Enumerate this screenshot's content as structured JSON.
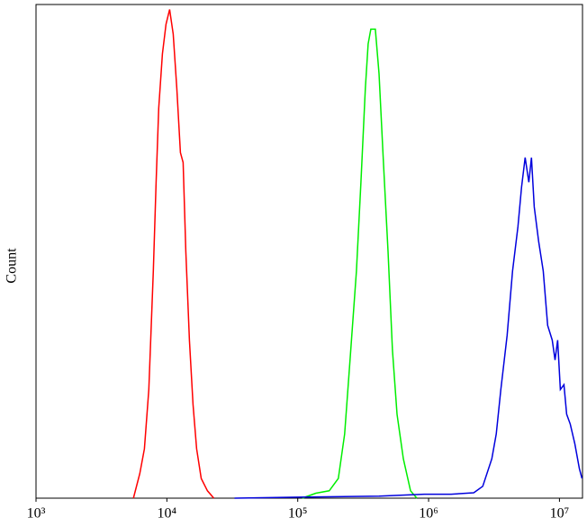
{
  "chart_data": {
    "type": "line",
    "y_label": "Count",
    "xscale": "log",
    "xlim": [
      1000,
      15000000
    ],
    "ylim": [
      0,
      100
    ],
    "xticks": [
      {
        "value": 1000,
        "label": "10³"
      },
      {
        "value": 10000,
        "label": "10⁴"
      },
      {
        "value": 100000,
        "label": "10⁵"
      },
      {
        "value": 1000000,
        "label": "10⁶"
      },
      {
        "value": 10000000,
        "label": "10⁷"
      }
    ],
    "series": [
      {
        "color": "#ff0000",
        "x": [
          5555,
          6210,
          6730,
          7280,
          7880,
          8270,
          8670,
          9240,
          9850,
          10490,
          11180,
          11910,
          12690,
          13300,
          13960,
          14870,
          15850,
          16890,
          18290,
          20420,
          22840
        ],
        "values": [
          0,
          5,
          10,
          22,
          46,
          64,
          79,
          90,
          96,
          99,
          94,
          83,
          70,
          68,
          50,
          32,
          19,
          10,
          4,
          1.5,
          0
        ]
      },
      {
        "color": "#00ee00",
        "x": [
          108200,
          137400,
          174200,
          204200,
          228400,
          251200,
          280700,
          303900,
          328800,
          345100,
          362100,
          391800,
          417800,
          451900,
          489500,
          529700,
          573700,
          641200,
          727800,
          812800
        ],
        "values": [
          0,
          1,
          1.5,
          4,
          13,
          28,
          46,
          64,
          83,
          92,
          95,
          95,
          86,
          68,
          50,
          30,
          17,
          8,
          1.5,
          0
        ]
      },
      {
        "color": "#0000dd",
        "x": [
          32880,
          100000,
          417800,
          924000,
          1486000,
          2213000,
          2594000,
          3041000,
          3289000,
          3564000,
          3981000,
          4378000,
          4818000,
          5129000,
          5470000,
          5834000,
          6112000,
          6412000,
          6935000,
          7516000,
          8128000,
          8810000,
          9247000,
          9683000,
          10160000,
          10820000,
          11350000,
          12100000,
          13100000,
          14190000,
          14860000
        ],
        "values": [
          0,
          0.2,
          0.4,
          0.8,
          0.8,
          1.1,
          2.4,
          8,
          13,
          22,
          33,
          46,
          55,
          63,
          69,
          64,
          69,
          59,
          52,
          46,
          35,
          32,
          28,
          32,
          22,
          23,
          17,
          15,
          11,
          6,
          4
        ]
      }
    ]
  }
}
